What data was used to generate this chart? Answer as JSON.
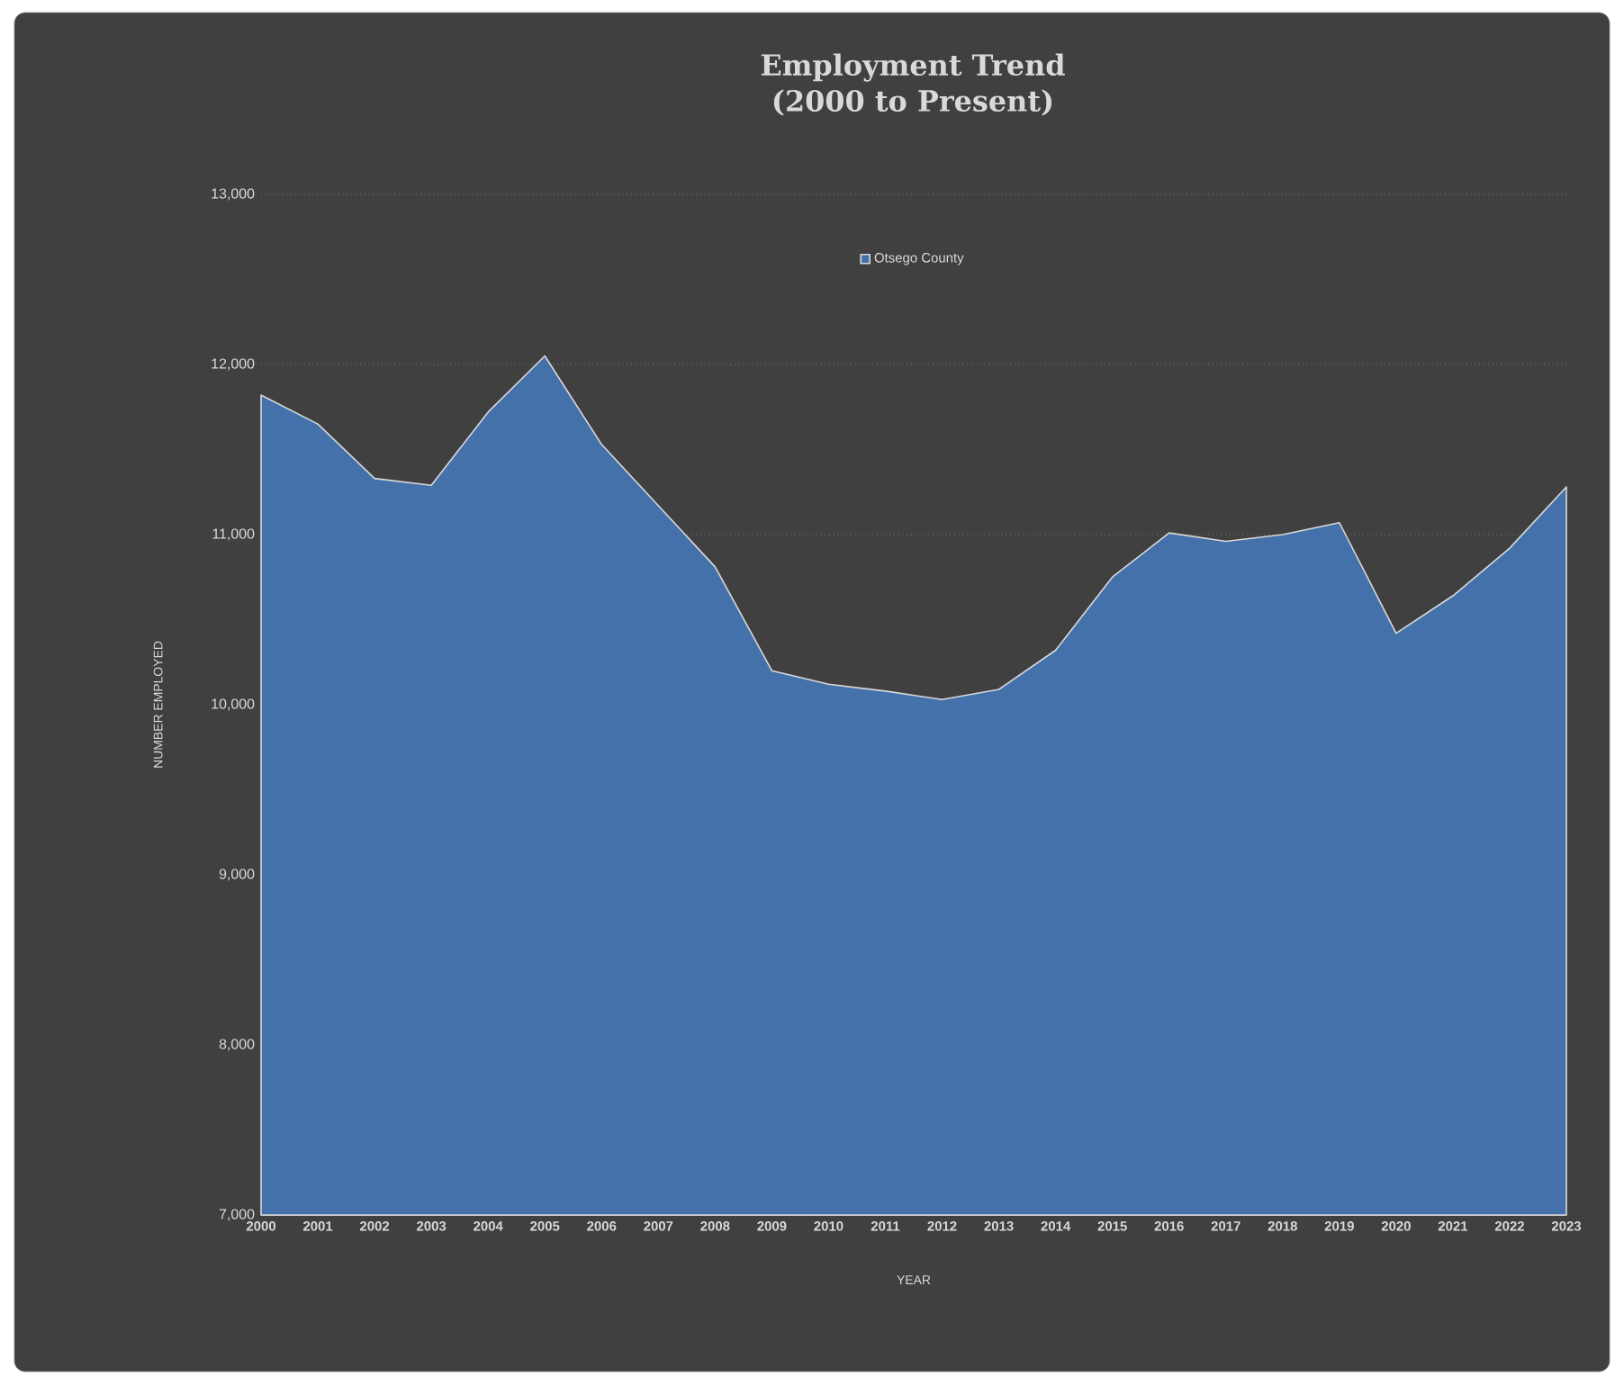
{
  "chart_data": {
    "type": "area",
    "title": "Employment Trend",
    "subtitle": "(2000 to Present)",
    "xlabel": "YEAR",
    "ylabel": "NUMBER EMPLOYED",
    "categories": [
      "2000",
      "2001",
      "2002",
      "2003",
      "2004",
      "2005",
      "2006",
      "2007",
      "2008",
      "2009",
      "2010",
      "2011",
      "2012",
      "2013",
      "2014",
      "2015",
      "2016",
      "2017",
      "2018",
      "2019",
      "2020",
      "2021",
      "2022",
      "2023"
    ],
    "series": [
      {
        "name": "Otsego County",
        "color": "#4471aa",
        "values": [
          11820,
          11650,
          11330,
          11290,
          11720,
          12050,
          11530,
          11170,
          10810,
          10200,
          10120,
          10080,
          10030,
          10090,
          10320,
          10750,
          11010,
          10960,
          11000,
          11070,
          10420,
          10640,
          10920,
          11280
        ]
      }
    ],
    "ylim": [
      7000,
      13000
    ],
    "yticks": [
      {
        "value": 7000,
        "label": "7,000"
      },
      {
        "value": 8000,
        "label": "8,000"
      },
      {
        "value": 9000,
        "label": "9,000"
      },
      {
        "value": 10000,
        "label": "10,000"
      },
      {
        "value": 11000,
        "label": "11,000"
      },
      {
        "value": 12000,
        "label": "12,000"
      },
      {
        "value": 13000,
        "label": "13,000"
      }
    ],
    "grid": "y",
    "legend": "top"
  }
}
